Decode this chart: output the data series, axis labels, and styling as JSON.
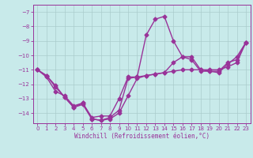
{
  "title": "Windchill (Refroidissement éolien,°C)",
  "bg_color": "#c8eaea",
  "grid_color": "#aacccc",
  "line_color": "#993399",
  "markersize": 2.5,
  "linewidth": 1.0,
  "xlim": [
    -0.5,
    23.5
  ],
  "ylim": [
    -14.7,
    -6.5
  ],
  "yticks": [
    -14,
    -13,
    -12,
    -11,
    -10,
    -9,
    -8,
    -7
  ],
  "xticks": [
    0,
    1,
    2,
    3,
    4,
    5,
    6,
    7,
    8,
    9,
    10,
    11,
    12,
    13,
    14,
    15,
    16,
    17,
    18,
    19,
    20,
    21,
    22,
    23
  ],
  "series1_x": [
    0,
    1,
    2,
    3,
    4,
    5,
    6,
    7,
    8,
    9,
    10,
    11,
    12,
    13,
    14,
    15,
    16,
    17,
    18,
    19,
    20,
    21,
    22,
    23
  ],
  "series1_y": [
    -11.0,
    -11.5,
    -12.5,
    -12.8,
    -13.5,
    -13.3,
    -14.3,
    -14.2,
    -14.2,
    -13.0,
    -11.5,
    -11.5,
    -8.6,
    -7.5,
    -7.3,
    -9.0,
    -10.1,
    -10.3,
    -11.1,
    -11.1,
    -11.2,
    -10.6,
    -10.1,
    -9.1
  ],
  "series2_x": [
    0,
    1,
    2,
    3,
    4,
    5,
    6,
    7,
    8,
    9,
    10,
    11,
    12,
    13,
    14,
    15,
    16,
    17,
    18,
    19,
    20,
    21,
    22,
    23
  ],
  "series2_y": [
    -11.0,
    -11.4,
    -12.1,
    -12.9,
    -13.6,
    -13.3,
    -14.4,
    -14.5,
    -14.3,
    -13.8,
    -11.6,
    -11.5,
    -11.4,
    -11.3,
    -11.2,
    -11.1,
    -11.0,
    -11.0,
    -11.0,
    -11.0,
    -11.0,
    -10.8,
    -10.5,
    -9.1
  ],
  "series3_x": [
    0,
    1,
    2,
    3,
    4,
    5,
    6,
    7,
    8,
    9,
    10,
    11,
    12,
    13,
    14,
    15,
    16,
    17,
    18,
    19,
    20,
    21,
    22,
    23
  ],
  "series3_y": [
    -11.0,
    -11.4,
    -12.2,
    -12.9,
    -13.6,
    -13.4,
    -14.4,
    -14.5,
    -14.4,
    -14.0,
    -12.8,
    -11.6,
    -11.4,
    -11.3,
    -11.2,
    -10.5,
    -10.1,
    -10.1,
    -11.0,
    -11.1,
    -11.1,
    -10.5,
    -10.3,
    -9.1
  ]
}
